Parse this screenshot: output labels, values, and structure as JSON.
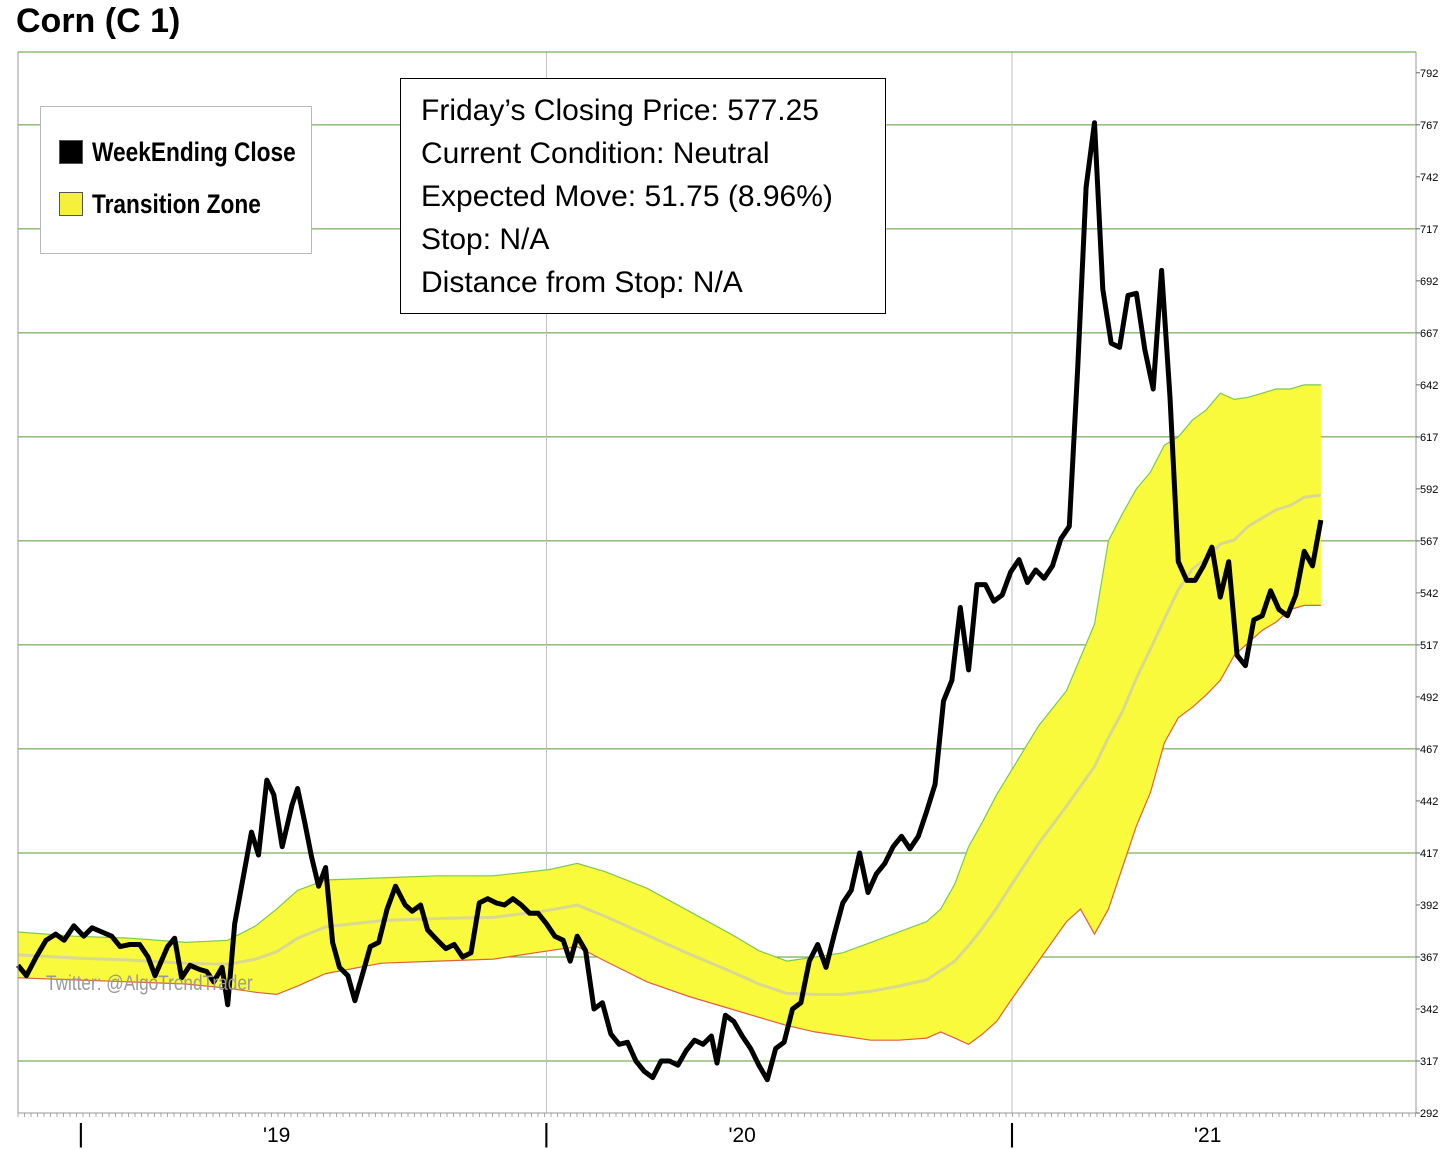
{
  "chart_title": "Corn (C 1)",
  "legend": [
    {
      "label": "WeekEnding Close",
      "color": "#000000"
    },
    {
      "label": "Transition Zone",
      "color": "#f5f03c"
    }
  ],
  "info": {
    "closing_price": "Friday’s Closing Price: 577.25",
    "condition": "Current Condition: Neutral",
    "expected_move": "Expected Move: 51.75 (8.96%)",
    "stop": "Stop: N/A",
    "distance": "Distance from Stop: N/A"
  },
  "watermark": "Twitter: @AlgoTrendTrader",
  "colors": {
    "close_line": "#000000",
    "zone_fill": "#fafa3c",
    "zone_upper_edge": "#7ec850",
    "zone_lower_edge": "#e06040",
    "zone_mid": "#d8d890",
    "gridline": "#5a9a32",
    "vertical_gridline": "#c0c0c0"
  },
  "chart_data": {
    "type": "line",
    "title": "Corn (C 1)",
    "ylim": [
      292,
      802
    ],
    "y_ticks": [
      292,
      317,
      342,
      367,
      392,
      417,
      442,
      467,
      492,
      517,
      542,
      567,
      592,
      617,
      642,
      667,
      692,
      717,
      742,
      767,
      792
    ],
    "x_tick_labels": [
      {
        "t": 0.045,
        "label": "|"
      },
      {
        "t": 0.185,
        "label": "'19"
      },
      {
        "t": 0.378,
        "label": "|"
      },
      {
        "t": 0.518,
        "label": "'20"
      },
      {
        "t": 0.711,
        "label": "|"
      },
      {
        "t": 0.851,
        "label": "'21"
      }
    ],
    "x_range": [
      0,
      1
    ],
    "series": [
      {
        "name": "WeekEnding Close",
        "points": [
          [
            0.0,
            363
          ],
          [
            0.006,
            358
          ],
          [
            0.013,
            367
          ],
          [
            0.02,
            375
          ],
          [
            0.027,
            378
          ],
          [
            0.033,
            375
          ],
          [
            0.04,
            382
          ],
          [
            0.047,
            377
          ],
          [
            0.053,
            381
          ],
          [
            0.06,
            379
          ],
          [
            0.067,
            377
          ],
          [
            0.073,
            372
          ],
          [
            0.08,
            373
          ],
          [
            0.087,
            373
          ],
          [
            0.093,
            367
          ],
          [
            0.098,
            358
          ],
          [
            0.107,
            372
          ],
          [
            0.112,
            376
          ],
          [
            0.117,
            357
          ],
          [
            0.123,
            363
          ],
          [
            0.13,
            361
          ],
          [
            0.135,
            360
          ],
          [
            0.14,
            355
          ],
          [
            0.146,
            362
          ],
          [
            0.15,
            344
          ],
          [
            0.155,
            383
          ],
          [
            0.161,
            405
          ],
          [
            0.167,
            427
          ],
          [
            0.172,
            416
          ],
          [
            0.178,
            452
          ],
          [
            0.183,
            445
          ],
          [
            0.189,
            420
          ],
          [
            0.196,
            440
          ],
          [
            0.2,
            448
          ],
          [
            0.205,
            432
          ],
          [
            0.21,
            415
          ],
          [
            0.215,
            401
          ],
          [
            0.22,
            410
          ],
          [
            0.225,
            374
          ],
          [
            0.23,
            362
          ],
          [
            0.236,
            358
          ],
          [
            0.241,
            346
          ],
          [
            0.247,
            360
          ],
          [
            0.252,
            372
          ],
          [
            0.258,
            374
          ],
          [
            0.264,
            390
          ],
          [
            0.27,
            401
          ],
          [
            0.277,
            392
          ],
          [
            0.282,
            389
          ],
          [
            0.288,
            392
          ],
          [
            0.293,
            380
          ],
          [
            0.3,
            375
          ],
          [
            0.306,
            371
          ],
          [
            0.312,
            373
          ],
          [
            0.318,
            367
          ],
          [
            0.324,
            369
          ],
          [
            0.33,
            393
          ],
          [
            0.336,
            395
          ],
          [
            0.342,
            393
          ],
          [
            0.348,
            392
          ],
          [
            0.354,
            395
          ],
          [
            0.36,
            392
          ],
          [
            0.366,
            388
          ],
          [
            0.372,
            388
          ],
          [
            0.378,
            383
          ],
          [
            0.384,
            377
          ],
          [
            0.39,
            375
          ],
          [
            0.395,
            365
          ],
          [
            0.4,
            377
          ],
          [
            0.406,
            370
          ],
          [
            0.412,
            342
          ],
          [
            0.418,
            345
          ],
          [
            0.424,
            330
          ],
          [
            0.43,
            325
          ],
          [
            0.436,
            326
          ],
          [
            0.442,
            317
          ],
          [
            0.448,
            312
          ],
          [
            0.454,
            309
          ],
          [
            0.46,
            317
          ],
          [
            0.466,
            317
          ],
          [
            0.472,
            315
          ],
          [
            0.478,
            322
          ],
          [
            0.484,
            327
          ],
          [
            0.49,
            325
          ],
          [
            0.496,
            329
          ],
          [
            0.5,
            316
          ],
          [
            0.506,
            339
          ],
          [
            0.512,
            336
          ],
          [
            0.518,
            329
          ],
          [
            0.524,
            323
          ],
          [
            0.53,
            315
          ],
          [
            0.536,
            308
          ],
          [
            0.542,
            323
          ],
          [
            0.548,
            326
          ],
          [
            0.554,
            342
          ],
          [
            0.56,
            345
          ],
          [
            0.566,
            365
          ],
          [
            0.572,
            373
          ],
          [
            0.578,
            362
          ],
          [
            0.584,
            378
          ],
          [
            0.59,
            393
          ],
          [
            0.596,
            399
          ],
          [
            0.602,
            417
          ],
          [
            0.608,
            398
          ],
          [
            0.614,
            407
          ],
          [
            0.62,
            412
          ],
          [
            0.626,
            420
          ],
          [
            0.632,
            425
          ],
          [
            0.638,
            419
          ],
          [
            0.644,
            425
          ],
          [
            0.65,
            437
          ],
          [
            0.656,
            450
          ],
          [
            0.662,
            490
          ],
          [
            0.668,
            500
          ],
          [
            0.674,
            535
          ],
          [
            0.68,
            505
          ],
          [
            0.686,
            546
          ],
          [
            0.692,
            546
          ],
          [
            0.698,
            538
          ],
          [
            0.704,
            541
          ],
          [
            0.71,
            552
          ],
          [
            0.716,
            558
          ],
          [
            0.722,
            547
          ],
          [
            0.728,
            553
          ],
          [
            0.734,
            549
          ],
          [
            0.74,
            555
          ],
          [
            0.746,
            568
          ],
          [
            0.752,
            574
          ],
          [
            0.758,
            650
          ],
          [
            0.764,
            737
          ],
          [
            0.77,
            768
          ],
          [
            0.776,
            688
          ],
          [
            0.782,
            662
          ],
          [
            0.788,
            660
          ],
          [
            0.794,
            685
          ],
          [
            0.8,
            686
          ],
          [
            0.806,
            659
          ],
          [
            0.812,
            640
          ],
          [
            0.818,
            697
          ],
          [
            0.824,
            636
          ],
          [
            0.83,
            557
          ],
          [
            0.836,
            548
          ],
          [
            0.842,
            548
          ],
          [
            0.848,
            555
          ],
          [
            0.854,
            564
          ],
          [
            0.86,
            540
          ],
          [
            0.866,
            557
          ],
          [
            0.872,
            512
          ],
          [
            0.878,
            507
          ],
          [
            0.884,
            529
          ],
          [
            0.89,
            531
          ],
          [
            0.896,
            543
          ],
          [
            0.902,
            534
          ],
          [
            0.908,
            531
          ],
          [
            0.914,
            541
          ],
          [
            0.92,
            562
          ],
          [
            0.926,
            555
          ],
          [
            0.932,
            577
          ]
        ]
      },
      {
        "name": "Transition Zone",
        "upper": [
          [
            0.0,
            379
          ],
          [
            0.04,
            377
          ],
          [
            0.08,
            376
          ],
          [
            0.12,
            374
          ],
          [
            0.15,
            375
          ],
          [
            0.17,
            382
          ],
          [
            0.185,
            390
          ],
          [
            0.2,
            399
          ],
          [
            0.22,
            404
          ],
          [
            0.26,
            405
          ],
          [
            0.3,
            406
          ],
          [
            0.34,
            406
          ],
          [
            0.38,
            409
          ],
          [
            0.4,
            412
          ],
          [
            0.42,
            408
          ],
          [
            0.45,
            400
          ],
          [
            0.48,
            389
          ],
          [
            0.51,
            378
          ],
          [
            0.53,
            370
          ],
          [
            0.55,
            365
          ],
          [
            0.57,
            367
          ],
          [
            0.59,
            369
          ],
          [
            0.61,
            374
          ],
          [
            0.63,
            379
          ],
          [
            0.65,
            384
          ],
          [
            0.66,
            390
          ],
          [
            0.67,
            402
          ],
          [
            0.68,
            420
          ],
          [
            0.69,
            432
          ],
          [
            0.7,
            445
          ],
          [
            0.71,
            456
          ],
          [
            0.73,
            478
          ],
          [
            0.75,
            495
          ],
          [
            0.77,
            527
          ],
          [
            0.78,
            567
          ],
          [
            0.79,
            580
          ],
          [
            0.8,
            592
          ],
          [
            0.81,
            600
          ],
          [
            0.82,
            613
          ],
          [
            0.83,
            617
          ],
          [
            0.84,
            625
          ],
          [
            0.85,
            630
          ],
          [
            0.86,
            638
          ],
          [
            0.87,
            635
          ],
          [
            0.88,
            636
          ],
          [
            0.89,
            638
          ],
          [
            0.9,
            640
          ],
          [
            0.91,
            640
          ],
          [
            0.92,
            642
          ],
          [
            0.932,
            642
          ]
        ],
        "lower": [
          [
            0.0,
            357
          ],
          [
            0.04,
            356
          ],
          [
            0.08,
            355
          ],
          [
            0.12,
            354
          ],
          [
            0.15,
            352
          ],
          [
            0.17,
            350
          ],
          [
            0.185,
            349
          ],
          [
            0.2,
            353
          ],
          [
            0.22,
            359
          ],
          [
            0.26,
            364
          ],
          [
            0.3,
            365
          ],
          [
            0.34,
            366
          ],
          [
            0.38,
            370
          ],
          [
            0.4,
            372
          ],
          [
            0.42,
            365
          ],
          [
            0.45,
            355
          ],
          [
            0.48,
            348
          ],
          [
            0.51,
            342
          ],
          [
            0.53,
            338
          ],
          [
            0.55,
            334
          ],
          [
            0.57,
            331
          ],
          [
            0.59,
            329
          ],
          [
            0.61,
            327
          ],
          [
            0.63,
            327
          ],
          [
            0.65,
            328
          ],
          [
            0.66,
            331
          ],
          [
            0.67,
            328
          ],
          [
            0.68,
            325
          ],
          [
            0.69,
            330
          ],
          [
            0.7,
            336
          ],
          [
            0.71,
            346
          ],
          [
            0.73,
            365
          ],
          [
            0.75,
            384
          ],
          [
            0.76,
            390
          ],
          [
            0.77,
            378
          ],
          [
            0.78,
            390
          ],
          [
            0.79,
            410
          ],
          [
            0.8,
            430
          ],
          [
            0.81,
            446
          ],
          [
            0.82,
            470
          ],
          [
            0.83,
            482
          ],
          [
            0.84,
            487
          ],
          [
            0.85,
            493
          ],
          [
            0.86,
            500
          ],
          [
            0.87,
            512
          ],
          [
            0.88,
            518
          ],
          [
            0.89,
            524
          ],
          [
            0.9,
            528
          ],
          [
            0.91,
            534
          ],
          [
            0.92,
            536
          ],
          [
            0.932,
            536
          ]
        ]
      }
    ]
  }
}
